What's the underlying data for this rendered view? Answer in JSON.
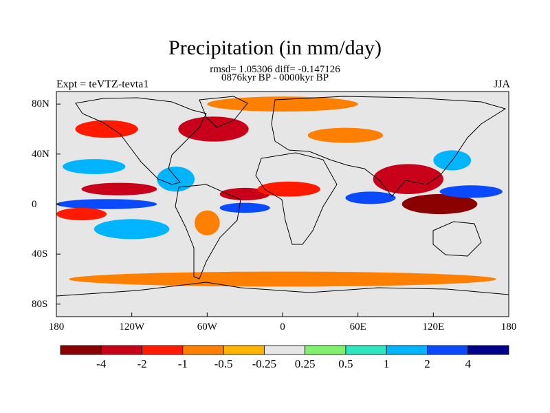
{
  "header": {
    "title": "Precipitation (in mm/day)",
    "stats": "rmsd= 1.05306 diff= -0.147126",
    "period": "0876kyr BP - 0000kyr BP",
    "experiment": "Expt = teVTZ-tevta1",
    "season": "JJA"
  },
  "axes": {
    "y_ticks": [
      {
        "label": "80N",
        "lat": 80
      },
      {
        "label": "40N",
        "lat": 40
      },
      {
        "label": "0",
        "lat": 0
      },
      {
        "label": "40S",
        "lat": -40
      },
      {
        "label": "80S",
        "lat": -80
      }
    ],
    "x_ticks": [
      {
        "label": "180",
        "lon": -180
      },
      {
        "label": "120W",
        "lon": -120
      },
      {
        "label": "60W",
        "lon": -60
      },
      {
        "label": "0",
        "lon": 0
      },
      {
        "label": "60E",
        "lon": 60
      },
      {
        "label": "120E",
        "lon": 120
      },
      {
        "label": "180",
        "lon": 180
      }
    ],
    "lon_range": [
      -180,
      180
    ],
    "lat_range": [
      -90,
      90
    ]
  },
  "colorbar": {
    "colors": [
      "#8b0000",
      "#c8001a",
      "#ff1a00",
      "#ff7f00",
      "#ffb400",
      "#e6e6e6",
      "#80f06e",
      "#30e6c0",
      "#00b4ff",
      "#0a4aff",
      "#00008b"
    ],
    "labels": [
      "-4",
      "-2",
      "-1",
      "-0.5",
      "-0.25",
      "0.25",
      "0.5",
      "1",
      "2",
      "4"
    ]
  },
  "map_data": {
    "background_color": "#e6e6e6",
    "anomaly_regions": [
      {
        "name": "north-atlantic-drying",
        "lon": -55,
        "lat": 60,
        "rlon": 28,
        "rlat": 10,
        "level": "-2"
      },
      {
        "name": "north-pacific-drying",
        "lon": -140,
        "lat": 60,
        "rlon": 25,
        "rlat": 7,
        "level": "-1"
      },
      {
        "name": "arctic-drying",
        "lon": 0,
        "lat": 80,
        "rlon": 60,
        "rlat": 6,
        "level": "-0.5"
      },
      {
        "name": "eurasia-drying",
        "lon": 50,
        "lat": 55,
        "rlon": 30,
        "rlat": 6,
        "level": "-0.5"
      },
      {
        "name": "subtropical-npacific-wetting",
        "lon": -150,
        "lat": 30,
        "rlon": 25,
        "rlat": 6,
        "level": "1"
      },
      {
        "name": "asian-monsoon-drying",
        "lon": 100,
        "lat": 20,
        "rlon": 28,
        "rlat": 12,
        "level": "-2"
      },
      {
        "name": "maritime-continent-drying",
        "lon": 125,
        "lat": 0,
        "rlon": 30,
        "rlat": 8,
        "level": "-4"
      },
      {
        "name": "west-pacific-wetting",
        "lon": 150,
        "lat": 10,
        "rlon": 25,
        "rlat": 5,
        "level": "2"
      },
      {
        "name": "northwest-pacific-wetting",
        "lon": 135,
        "lat": 35,
        "rlon": 15,
        "rlat": 8,
        "level": "1"
      },
      {
        "name": "east-pacific-itcz-drying",
        "lon": -130,
        "lat": 12,
        "rlon": 30,
        "rlat": 5,
        "level": "-2"
      },
      {
        "name": "equatorial-pacific-wetting",
        "lon": -140,
        "lat": 0,
        "rlon": 40,
        "rlat": 4,
        "level": "2"
      },
      {
        "name": "south-pacific-drying",
        "lon": -160,
        "lat": -8,
        "rlon": 20,
        "rlat": 5,
        "level": "-1"
      },
      {
        "name": "central-america-wetting",
        "lon": -85,
        "lat": 20,
        "rlon": 15,
        "rlat": 10,
        "level": "1"
      },
      {
        "name": "atlantic-itcz-drying",
        "lon": -30,
        "lat": 8,
        "rlon": 20,
        "rlat": 5,
        "level": "-2"
      },
      {
        "name": "sahel-drying",
        "lon": 5,
        "lat": 12,
        "rlon": 25,
        "rlat": 6,
        "level": "-1"
      },
      {
        "name": "south-atlantic-wetting",
        "lon": -30,
        "lat": -3,
        "rlon": 20,
        "rlat": 4,
        "level": "2"
      },
      {
        "name": "indian-ocean-wetting",
        "lon": 70,
        "lat": 5,
        "rlon": 20,
        "rlat": 5,
        "level": "2"
      },
      {
        "name": "southeast-pacific-wetting",
        "lon": -120,
        "lat": -20,
        "rlon": 30,
        "rlat": 8,
        "level": "1"
      },
      {
        "name": "southern-ocean-drying",
        "lon": 0,
        "lat": -60,
        "rlon": 170,
        "rlat": 6,
        "level": "-0.5"
      },
      {
        "name": "south-america-drying",
        "lon": -60,
        "lat": -15,
        "rlon": 10,
        "rlat": 10,
        "level": "-0.5"
      }
    ]
  }
}
